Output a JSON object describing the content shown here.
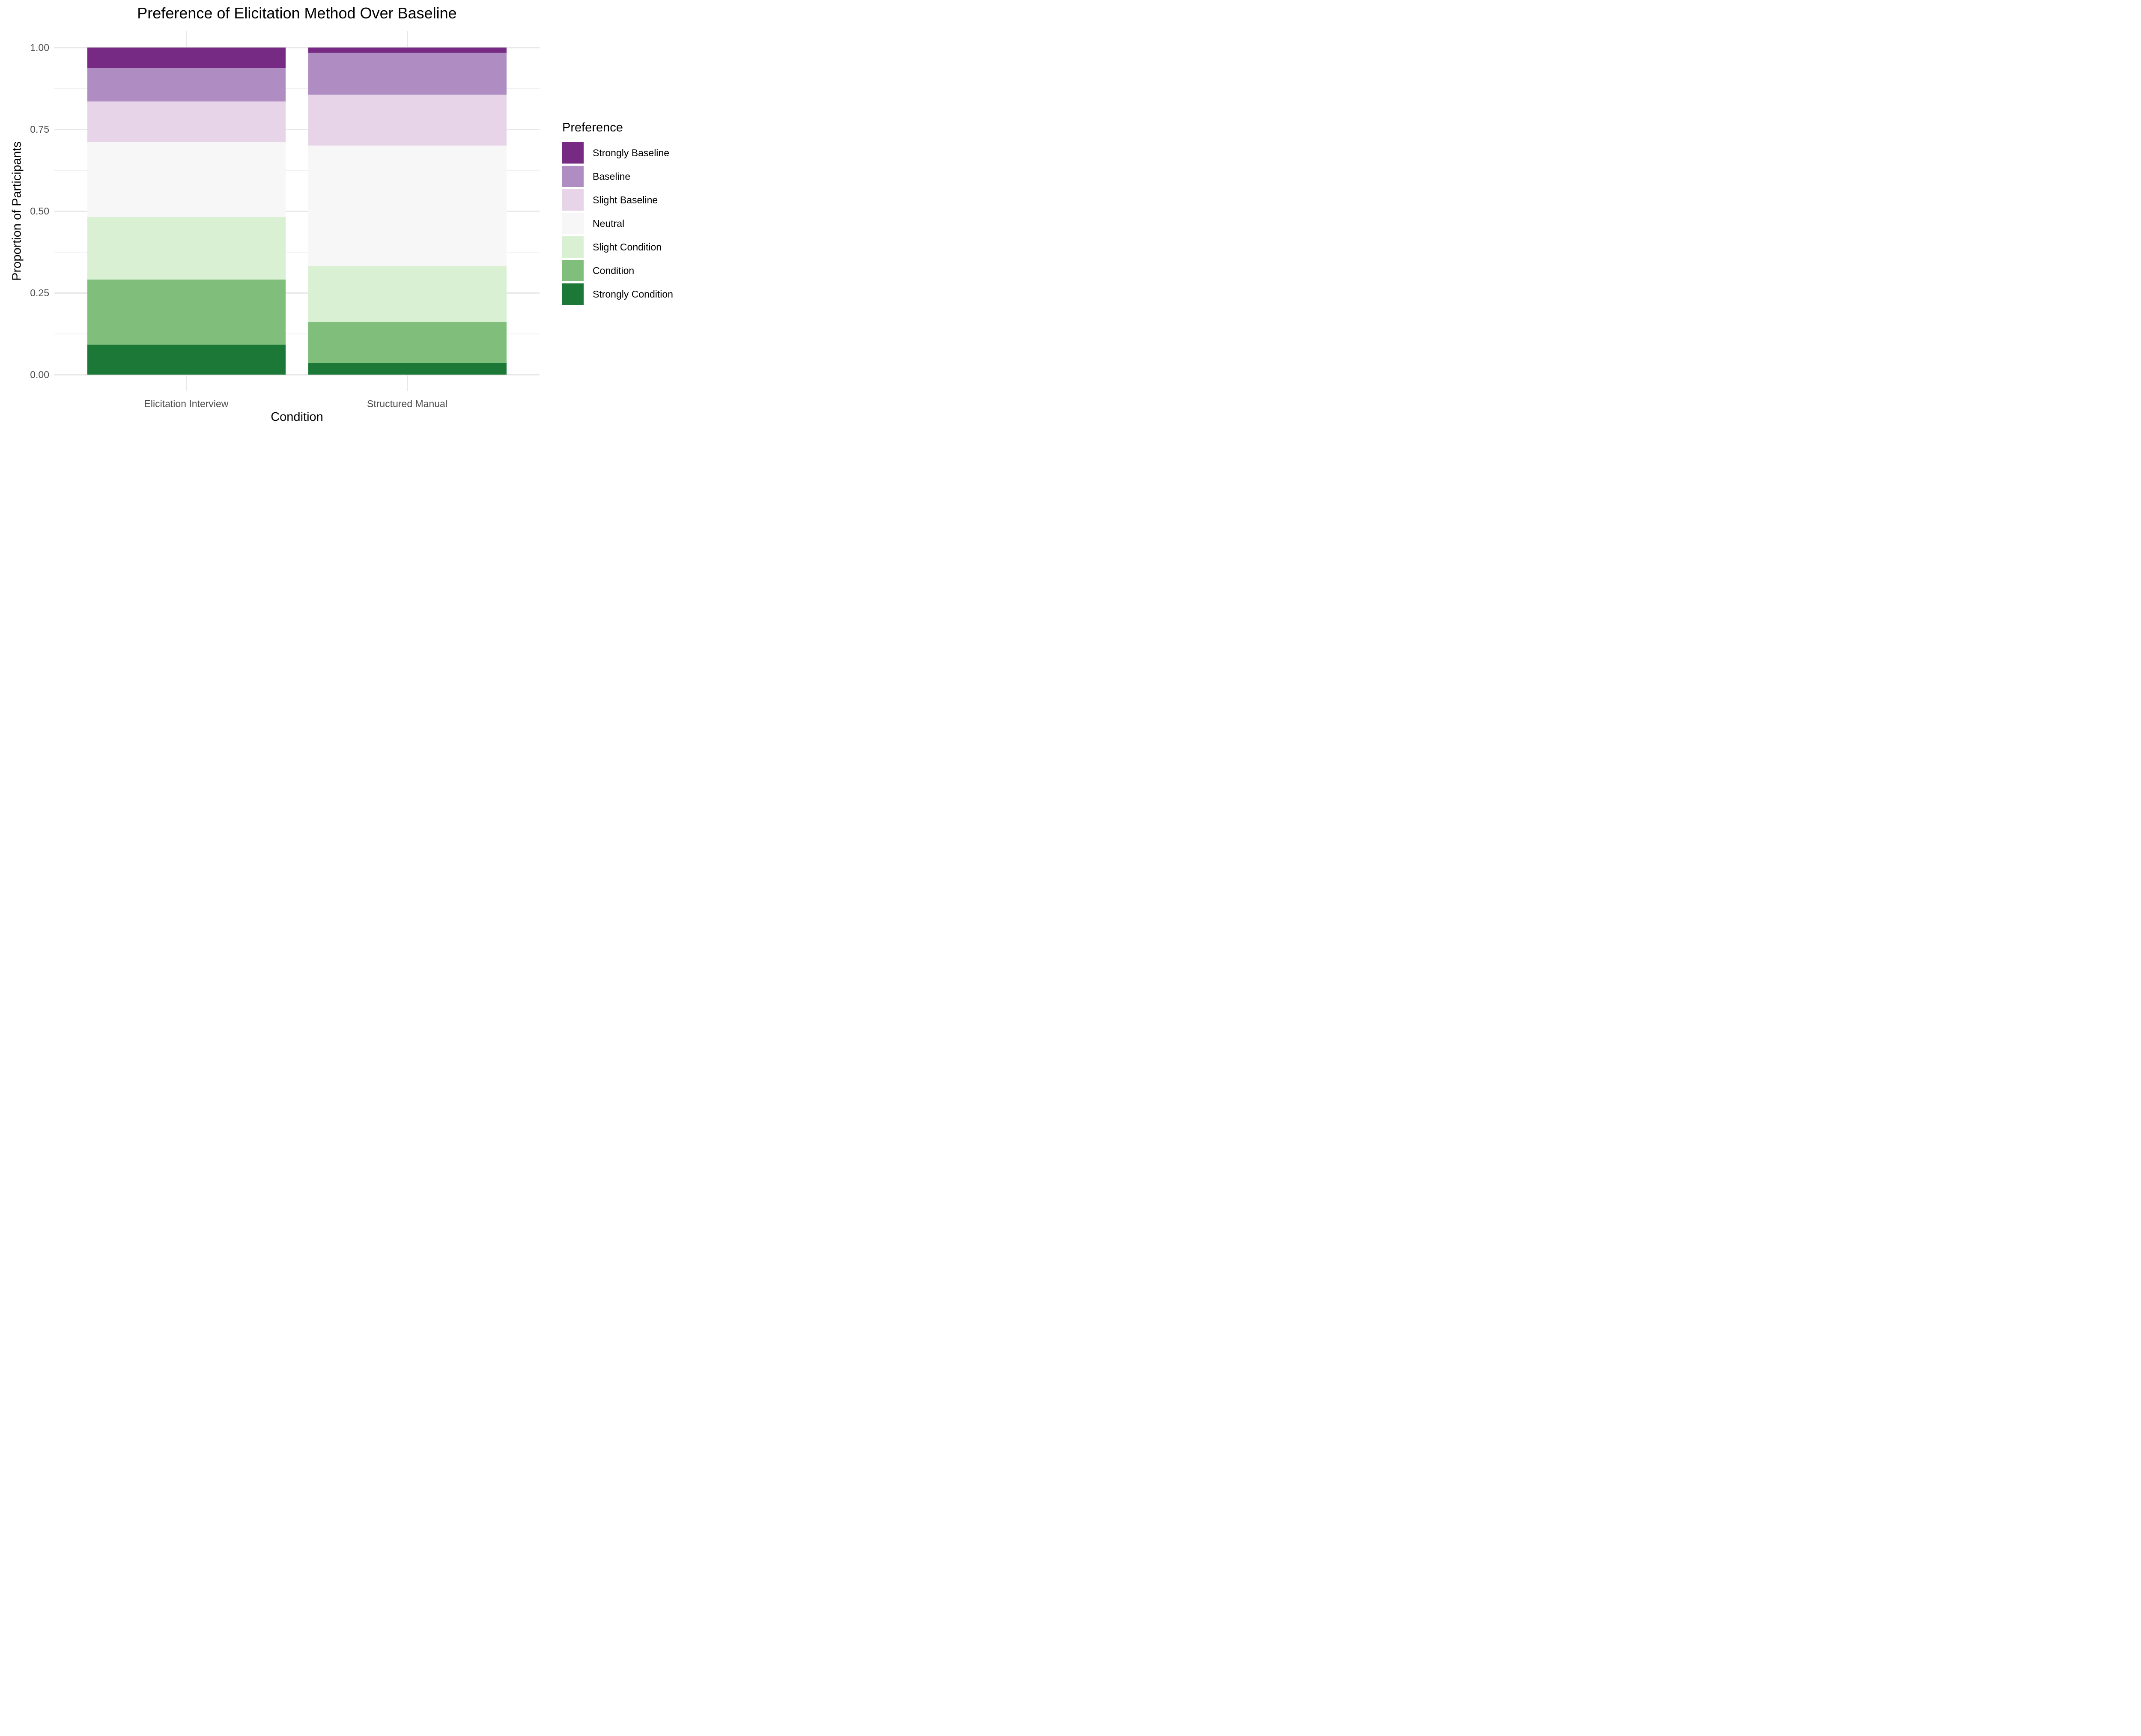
{
  "chart_data": {
    "type": "bar",
    "stacked": true,
    "orientation": "vertical",
    "title": "Preference of Elicitation Method Over Baseline",
    "xlabel": "Condition",
    "ylabel": "Proportion of Participants",
    "categories": [
      "Elicitation Interview",
      "Structured Manual"
    ],
    "series": [
      {
        "name": "Strongly Baseline",
        "color": "#762a83",
        "values": [
          0.063,
          0.016
        ]
      },
      {
        "name": "Baseline",
        "color": "#af8dc3",
        "values": [
          0.102,
          0.128
        ]
      },
      {
        "name": "Slight Baseline",
        "color": "#e7d4e8",
        "values": [
          0.124,
          0.156
        ]
      },
      {
        "name": "Neutral",
        "color": "#f7f7f7",
        "values": [
          0.229,
          0.368
        ]
      },
      {
        "name": "Slight Condition",
        "color": "#d9f0d3",
        "values": [
          0.192,
          0.171
        ]
      },
      {
        "name": "Condition",
        "color": "#7fbf7b",
        "values": [
          0.199,
          0.126
        ]
      },
      {
        "name": "Strongly Condition",
        "color": "#1b7837",
        "values": [
          0.091,
          0.035
        ]
      }
    ],
    "stack_order": "first series at top of each bar",
    "ylim": [
      0,
      1
    ],
    "y_ticks": [
      {
        "value": 1.0,
        "label": "1.00"
      },
      {
        "value": 0.75,
        "label": "0.75"
      },
      {
        "value": 0.5,
        "label": "0.50"
      },
      {
        "value": 0.25,
        "label": "0.25"
      },
      {
        "value": 0.0,
        "label": "0.00"
      }
    ],
    "y_minor_ticks": [
      0.875,
      0.625,
      0.375,
      0.125
    ],
    "grid": "horizontal major and minor gridlines; vertical gridline at each category",
    "legend": {
      "title": "Preference",
      "position": "right"
    }
  },
  "styles": {
    "background": "#ffffff",
    "grid_major": "#e8e8e8",
    "grid_minor": "#f1f1f1",
    "axis_text": "#4d4d4d",
    "text": "#000000"
  }
}
